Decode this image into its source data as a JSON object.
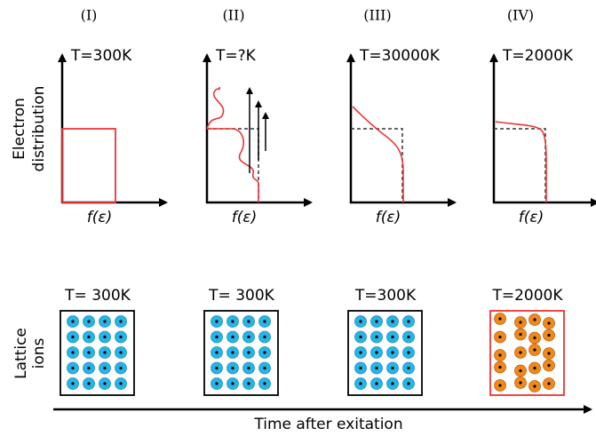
{
  "panels": [
    {
      "label": "(I)",
      "electron_temp": "T=300K",
      "axis_label": "f(ε)",
      "lattice_temp": "T= 300K"
    },
    {
      "label": "(II)",
      "electron_temp": "T=?K",
      "axis_label": "f(ε)",
      "lattice_temp": "T= 300K"
    },
    {
      "label": "(III)",
      "electron_temp": "T=30000K",
      "axis_label": "f(ε)",
      "lattice_temp": "T=300K"
    },
    {
      "label": "(IV)",
      "electron_temp": "T=2000K",
      "axis_label": "f(ε)",
      "lattice_temp": "T=2000K"
    }
  ],
  "electron_label": [
    "Electron",
    "distribution"
  ],
  "lattice_label": [
    "Lattice",
    "ions"
  ],
  "time_label": "Time after exitation"
}
